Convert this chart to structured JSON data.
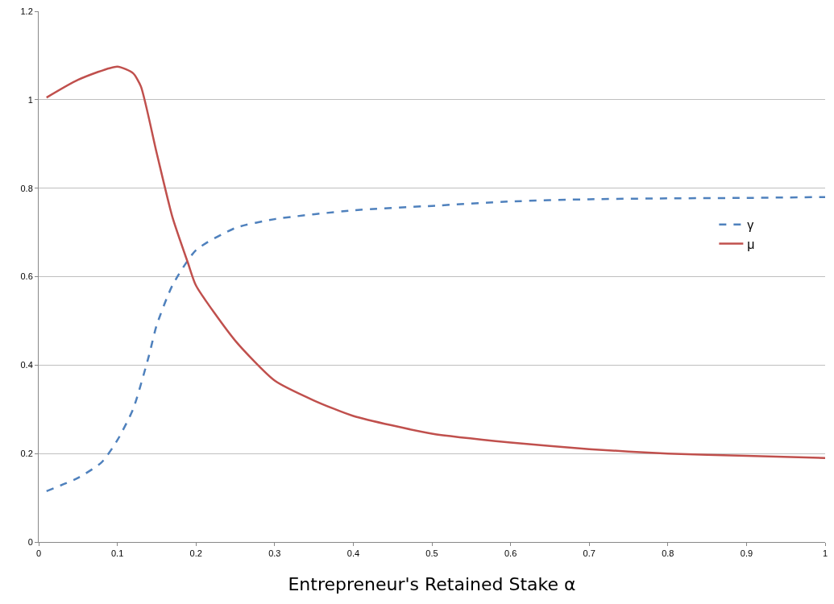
{
  "chart_data": {
    "type": "line",
    "xlabel": "Entrepreneur's Retained Stake α",
    "xlim": [
      0,
      1
    ],
    "xticks": [
      0,
      0.1,
      0.2,
      0.3,
      0.4,
      0.5,
      0.6,
      0.7,
      0.8,
      0.9,
      1
    ],
    "ylim": [
      0,
      1.2
    ],
    "yticks": [
      0,
      0.2,
      0.4,
      0.6,
      0.8,
      1,
      1.2
    ],
    "grid": "y",
    "legend": "right",
    "marker": "none",
    "series": [
      {
        "name": "γ",
        "color": "#4f81bd",
        "line_style": "dashed",
        "x": [
          0.01,
          0.05,
          0.08,
          0.1,
          0.12,
          0.14,
          0.15,
          0.17,
          0.2,
          0.25,
          0.3,
          0.4,
          0.5,
          0.6,
          0.7,
          0.8,
          0.9,
          1
        ],
        "values": [
          0.115,
          0.145,
          0.18,
          0.23,
          0.3,
          0.42,
          0.49,
          0.58,
          0.66,
          0.71,
          0.73,
          0.75,
          0.76,
          0.77,
          0.775,
          0.777,
          0.778,
          0.78
        ]
      },
      {
        "name": "μ",
        "color": "#c0504d",
        "line_style": "solid",
        "x": [
          0.01,
          0.05,
          0.1,
          0.12,
          0.13,
          0.15,
          0.17,
          0.19,
          0.2,
          0.25,
          0.3,
          0.35,
          0.4,
          0.5,
          0.6,
          0.7,
          0.8,
          0.9,
          1
        ],
        "values": [
          1.005,
          1.045,
          1.075,
          1.06,
          1.03,
          0.88,
          0.735,
          0.63,
          0.58,
          0.455,
          0.365,
          0.32,
          0.285,
          0.245,
          0.225,
          0.21,
          0.2,
          0.195,
          0.19
        ]
      }
    ]
  }
}
